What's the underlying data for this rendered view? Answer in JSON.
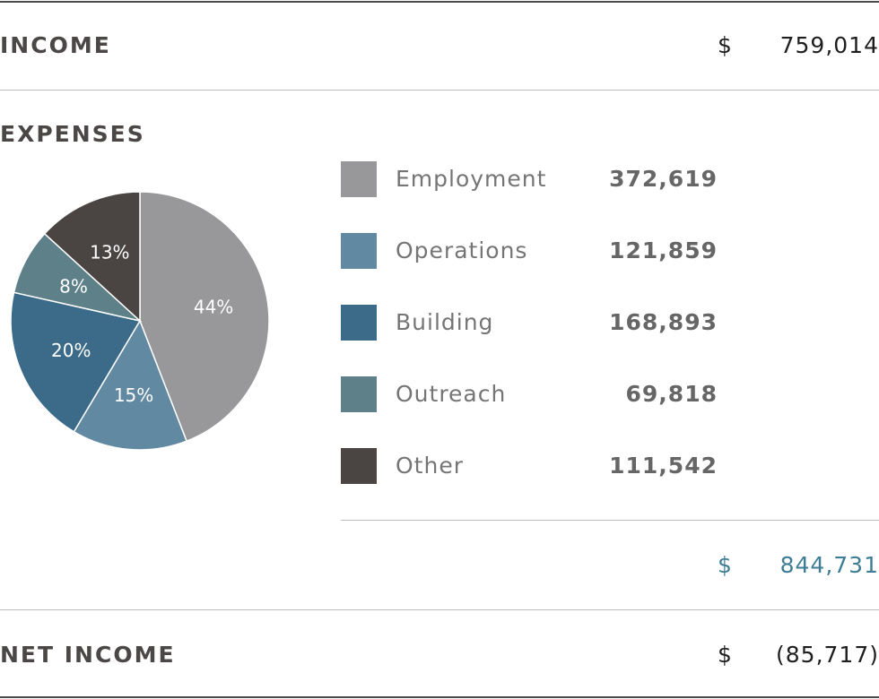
{
  "income": {
    "label": "INCOME",
    "currency": "$",
    "amount": "759,014"
  },
  "expenses": {
    "label": "EXPENSES",
    "total_currency": "$",
    "total": "844,731",
    "items": [
      {
        "label": "Employment",
        "value": "372,619",
        "color": "#98989b"
      },
      {
        "label": "Operations",
        "value": "121,859",
        "color": "#6189a2"
      },
      {
        "label": "Building",
        "value": "168,893",
        "color": "#3b6b89"
      },
      {
        "label": "Outreach",
        "value": "69,818",
        "color": "#5d8089"
      },
      {
        "label": "Other",
        "value": "111,542",
        "color": "#4a4443"
      }
    ]
  },
  "net_income": {
    "label": "NET INCOME",
    "currency": "$",
    "amount": "(85,717)"
  },
  "chart_data": {
    "type": "pie",
    "categories": [
      "Employment",
      "Operations",
      "Building",
      "Outreach",
      "Other"
    ],
    "values": [
      372619,
      121859,
      168893,
      69818,
      111542
    ],
    "percent_labels": [
      "44%",
      "15%",
      "20%",
      "8%",
      "13%"
    ],
    "colors": [
      "#98989b",
      "#6189a2",
      "#3b6b89",
      "#5d8089",
      "#4a4443"
    ],
    "start": "12 o'clock",
    "direction": "clockwise"
  }
}
